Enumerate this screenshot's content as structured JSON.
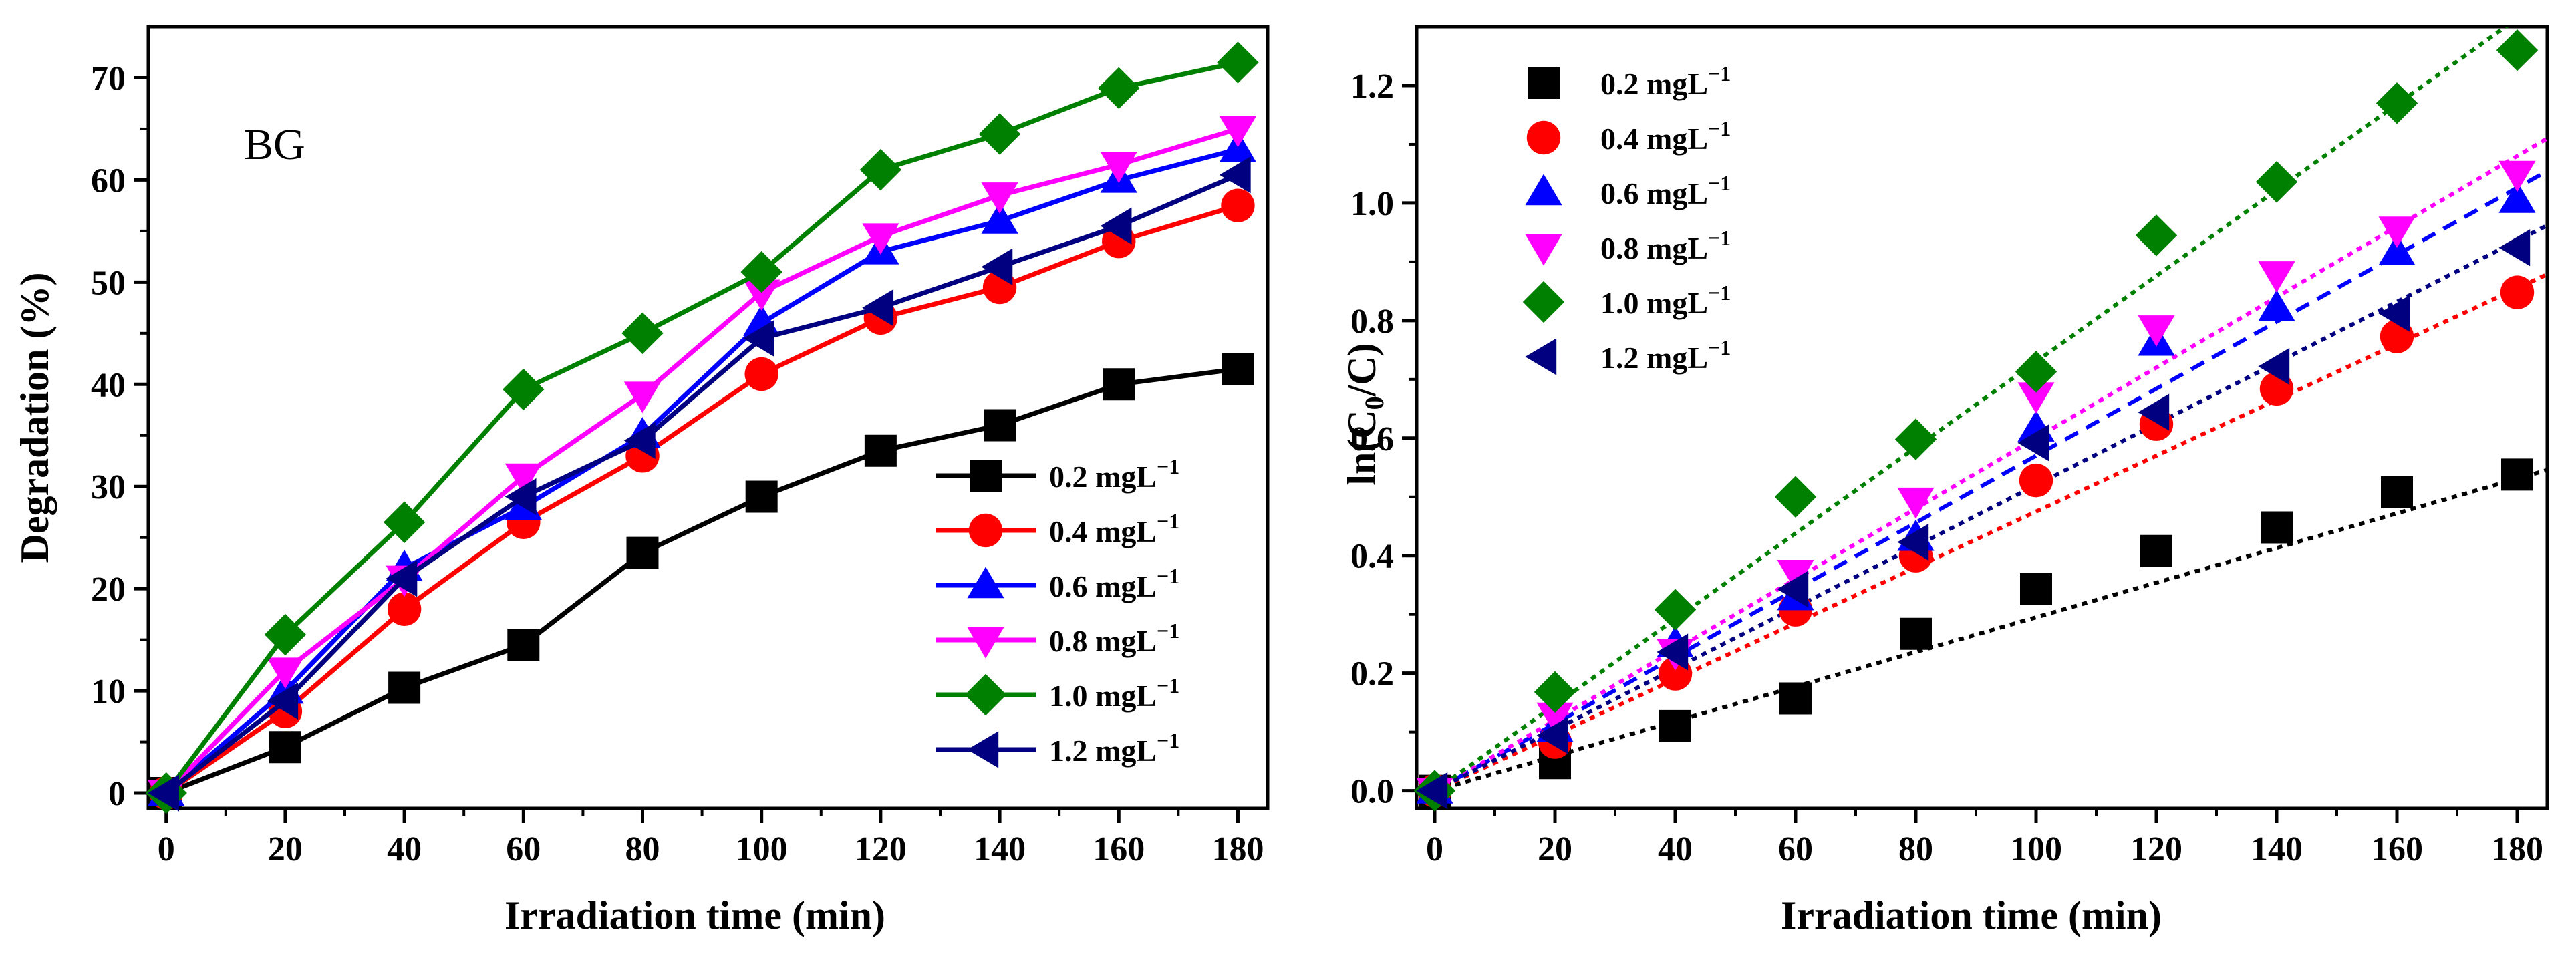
{
  "chart_data": [
    {
      "type": "line",
      "annotation": "BG",
      "xlabel": "Irradiation time (min)",
      "ylabel": "Degradation (%)",
      "xlim": [
        -3,
        185
      ],
      "ylim": [
        -1.5,
        75
      ],
      "xticks": [
        0,
        20,
        40,
        60,
        80,
        100,
        120,
        140,
        160,
        180
      ],
      "yticks": [
        0,
        10,
        20,
        30,
        40,
        50,
        60,
        70
      ],
      "x": [
        0,
        20,
        40,
        60,
        80,
        100,
        120,
        140,
        160,
        180
      ],
      "legend_position": "bottom-right",
      "series": [
        {
          "name": "0.2 mgL",
          "sup": "−1",
          "color": "#000000",
          "marker": "square",
          "values": [
            0,
            4.5,
            10.3,
            14.5,
            23.5,
            29,
            33.5,
            36,
            40,
            41.5
          ]
        },
        {
          "name": "0.4 mgL",
          "sup": "−1",
          "color": "#ff0000",
          "marker": "circle",
          "values": [
            0,
            8,
            18,
            26.5,
            33,
            41,
            46.5,
            49.5,
            54,
            57.5
          ]
        },
        {
          "name": "0.6 mgL",
          "sup": "−1",
          "color": "#0000ff",
          "marker": "triangle-up",
          "values": [
            0,
            10,
            22,
            28,
            35,
            46,
            53,
            56,
            60,
            63
          ]
        },
        {
          "name": "0.8 mgL",
          "sup": "−1",
          "color": "#ff00ff",
          "marker": "triangle-down",
          "values": [
            0,
            12,
            21,
            31,
            39,
            49,
            54.5,
            58.5,
            61.5,
            65
          ]
        },
        {
          "name": "1.0 mgL",
          "sup": "−1",
          "color": "#008000",
          "marker": "diamond",
          "values": [
            0,
            15.5,
            26.5,
            39.5,
            45,
            51,
            61,
            64.5,
            69,
            71.5
          ]
        },
        {
          "name": "1.2 mgL",
          "sup": "−1",
          "color": "#000080",
          "marker": "triangle-left",
          "values": [
            0,
            9,
            21,
            29,
            34.5,
            44.5,
            47.5,
            51.5,
            55.5,
            60.5
          ]
        }
      ]
    },
    {
      "type": "scatter",
      "xlabel": "Irradiation time (min)",
      "ylabel_prefix": "ln(C",
      "ylabel_sub": "0",
      "ylabel_suffix": "/C)",
      "xlim": [
        -3,
        185
      ],
      "ylim": [
        -0.03,
        1.3
      ],
      "xticks": [
        0,
        20,
        40,
        60,
        80,
        100,
        120,
        140,
        160,
        180
      ],
      "yticks": [
        "0.0",
        "0.2",
        "0.4",
        "0.6",
        "0.8",
        "1.0",
        "1.2"
      ],
      "x": [
        0,
        20,
        40,
        60,
        80,
        100,
        120,
        140,
        160,
        180
      ],
      "legend_position": "top-left",
      "fit": "linear through origin (dashed lines)",
      "series": [
        {
          "name": "0.2 mgL",
          "sup": "−1",
          "color": "#000000",
          "marker": "square",
          "values": [
            0,
            0.047,
            0.11,
            0.157,
            0.267,
            0.343,
            0.408,
            0.448,
            0.508,
            0.538
          ],
          "slope": 0.00295
        },
        {
          "name": "0.4 mgL",
          "sup": "−1",
          "color": "#ff0000",
          "marker": "circle",
          "values": [
            0,
            0.083,
            0.199,
            0.308,
            0.4,
            0.528,
            0.624,
            0.684,
            0.773,
            0.848
          ],
          "slope": 0.00475
        },
        {
          "name": "0.6 mgL",
          "sup": "−1",
          "color": "#0000ff",
          "marker": "triangle-up",
          "values": [
            0,
            0.105,
            0.249,
            0.329,
            0.43,
            0.616,
            0.762,
            0.821,
            0.916,
            1.005
          ],
          "slope": 0.0057
        },
        {
          "name": "0.8 mgL",
          "sup": "−1",
          "color": "#ff00ff",
          "marker": "triangle-down",
          "values": [
            0,
            0.128,
            0.236,
            0.371,
            0.494,
            0.673,
            0.787,
            0.879,
            0.955,
            1.05
          ],
          "slope": 0.006
        },
        {
          "name": "1.0 mgL",
          "sup": "−1",
          "color": "#008000",
          "marker": "diamond",
          "values": [
            0,
            0.168,
            0.308,
            0.5,
            0.598,
            0.713,
            0.945,
            1.036,
            1.17,
            1.26
          ],
          "slope": 0.0073
        },
        {
          "name": "1.2 mgL",
          "sup": "−1",
          "color": "#000080",
          "marker": "triangle-left",
          "values": [
            0,
            0.094,
            0.236,
            0.343,
            0.423,
            0.592,
            0.644,
            0.722,
            0.812,
            0.924
          ],
          "slope": 0.0052
        }
      ]
    }
  ]
}
